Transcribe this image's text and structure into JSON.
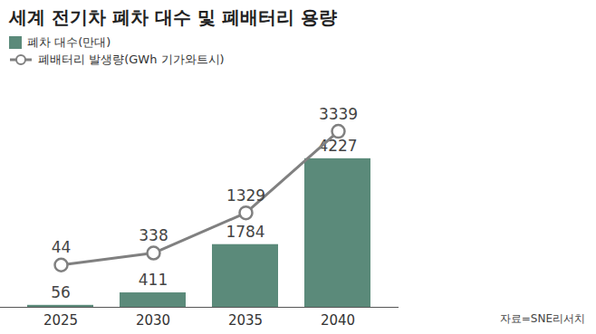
{
  "chart_data": {
    "type": "bar",
    "title": "세계 전기차 폐차 대수 및 폐배터리 용량",
    "caption": "자료=SNE리서치",
    "categories": [
      2025,
      2030,
      2035,
      2040
    ],
    "series": [
      {
        "name": "폐차 대수(만대)",
        "type": "bar",
        "color": "#5b8a7a",
        "values": [
          56,
          411,
          1784,
          4227
        ]
      },
      {
        "name": "폐배터리 발생량(GWh 기가와트시)",
        "type": "line",
        "axis": "y2",
        "color": "#808080",
        "marker": "circle",
        "values": [
          44,
          338,
          1329,
          3339
        ]
      }
    ],
    "ylim": [
      0,
      6000
    ],
    "y2lim": [
      -1000,
      4200
    ],
    "data_labels": true,
    "tick_labels": "x",
    "legend": "top-left",
    "grid": false
  }
}
